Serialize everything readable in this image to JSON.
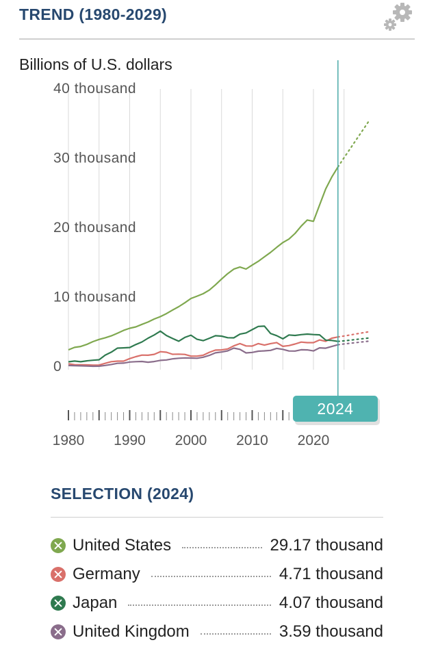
{
  "header": {
    "title": "TREND (1980-2029)"
  },
  "chart_unit": "Billions of U.S. dollars",
  "chart_data": {
    "type": "line",
    "title": "TREND (1980-2029)",
    "ylabel": "Billions of U.S. dollars",
    "xlabel": "",
    "xlim": [
      1980,
      2029
    ],
    "ylim": [
      0,
      40000
    ],
    "y_ticks": [
      {
        "value": 0,
        "label": "0"
      },
      {
        "value": 10000,
        "label": "10 thousand"
      },
      {
        "value": 20000,
        "label": "20 thousand"
      },
      {
        "value": 30000,
        "label": "30 thousand"
      },
      {
        "value": 40000,
        "label": "40 thousand"
      }
    ],
    "x_ticks": [
      {
        "value": 1980,
        "label": "1980"
      },
      {
        "value": 1990,
        "label": "1990"
      },
      {
        "value": 2000,
        "label": "2000"
      },
      {
        "value": 2010,
        "label": "2010"
      },
      {
        "value": 2020,
        "label": "2020"
      }
    ],
    "selected_year": 2024,
    "selected_label": "2024",
    "forecast_from": 2024,
    "series": [
      {
        "name": "United States",
        "color": "#7fa84f",
        "x": [
          1980,
          1981,
          1982,
          1983,
          1984,
          1985,
          1986,
          1987,
          1988,
          1989,
          1990,
          1991,
          1992,
          1993,
          1994,
          1995,
          1996,
          1997,
          1998,
          1999,
          2000,
          2001,
          2002,
          2003,
          2004,
          2005,
          2006,
          2007,
          2008,
          2009,
          2010,
          2011,
          2012,
          2013,
          2014,
          2015,
          2016,
          2017,
          2018,
          2019,
          2020,
          2021,
          2022,
          2023,
          2024,
          2025,
          2026,
          2027,
          2028,
          2029
        ],
        "values": [
          2860,
          3210,
          3340,
          3640,
          4040,
          4350,
          4590,
          4870,
          5250,
          5660,
          5960,
          6160,
          6520,
          6860,
          7290,
          7640,
          8070,
          8580,
          9060,
          9630,
          10250,
          10580,
          10940,
          11460,
          12210,
          13040,
          13820,
          14470,
          14770,
          14480,
          15050,
          15600,
          16250,
          16880,
          17610,
          18300,
          18800,
          19610,
          20660,
          21540,
          21350,
          23680,
          26010,
          27720,
          29170,
          30500,
          31800,
          33100,
          34400,
          35700
        ]
      },
      {
        "name": "Germany",
        "color": "#d9706a",
        "x": [
          1980,
          1981,
          1982,
          1983,
          1984,
          1985,
          1986,
          1987,
          1988,
          1989,
          1990,
          1991,
          1992,
          1993,
          1994,
          1995,
          1996,
          1997,
          1998,
          1999,
          2000,
          2001,
          2002,
          2003,
          2004,
          2005,
          2006,
          2007,
          2008,
          2009,
          2010,
          2011,
          2012,
          2013,
          2014,
          2015,
          2016,
          2017,
          2018,
          2019,
          2020,
          2021,
          2022,
          2023,
          2024,
          2025,
          2026,
          2027,
          2028,
          2029
        ],
        "values": [
          850,
          720,
          700,
          690,
          650,
          670,
          920,
          1150,
          1230,
          1230,
          1600,
          1870,
          2100,
          2080,
          2210,
          2590,
          2510,
          2220,
          2240,
          2200,
          1950,
          1950,
          2080,
          2500,
          2820,
          2850,
          2990,
          3430,
          3750,
          3420,
          3400,
          3750,
          3540,
          3750,
          3900,
          3360,
          3470,
          3690,
          3970,
          3890,
          3890,
          4280,
          4090,
          4530,
          4710,
          4850,
          5000,
          5150,
          5300,
          5450
        ]
      },
      {
        "name": "Japan",
        "color": "#2f7a4f",
        "x": [
          1980,
          1981,
          1982,
          1983,
          1984,
          1985,
          1986,
          1987,
          1988,
          1989,
          1990,
          1991,
          1992,
          1993,
          1994,
          1995,
          1996,
          1997,
          1998,
          1999,
          2000,
          2001,
          2002,
          2003,
          2004,
          2005,
          2006,
          2007,
          2008,
          2009,
          2010,
          2011,
          2012,
          2013,
          2014,
          2015,
          2016,
          2017,
          2018,
          2019,
          2020,
          2021,
          2022,
          2023,
          2024,
          2025,
          2026,
          2027,
          2028,
          2029
        ],
        "values": [
          1130,
          1240,
          1140,
          1270,
          1360,
          1430,
          2100,
          2520,
          3100,
          3140,
          3190,
          3620,
          3990,
          4530,
          5000,
          5550,
          4920,
          4490,
          4100,
          4640,
          4970,
          4370,
          4180,
          4520,
          4890,
          4830,
          4600,
          4580,
          5110,
          5290,
          5760,
          6230,
          6270,
          5210,
          4900,
          4440,
          5000,
          4930,
          5040,
          5120,
          5050,
          5010,
          4260,
          4210,
          4070,
          4150,
          4250,
          4350,
          4450,
          4550
        ]
      },
      {
        "name": "United Kingdom",
        "color": "#8a6d8b",
        "x": [
          1980,
          1981,
          1982,
          1983,
          1984,
          1985,
          1986,
          1987,
          1988,
          1989,
          1990,
          1991,
          1992,
          1993,
          1994,
          1995,
          1996,
          1997,
          1998,
          1999,
          2000,
          2001,
          2002,
          2003,
          2004,
          2005,
          2006,
          2007,
          2008,
          2009,
          2010,
          2011,
          2012,
          2013,
          2014,
          2015,
          2016,
          2017,
          2018,
          2019,
          2020,
          2021,
          2022,
          2023,
          2024,
          2025,
          2026,
          2027,
          2028,
          2029
        ],
        "values": [
          600,
          580,
          550,
          520,
          490,
          500,
          610,
          750,
          920,
          950,
          1100,
          1150,
          1180,
          1070,
          1170,
          1340,
          1400,
          1560,
          1650,
          1690,
          1670,
          1650,
          1790,
          2060,
          2420,
          2540,
          2710,
          3100,
          2930,
          2410,
          2480,
          2660,
          2710,
          2780,
          3060,
          2930,
          2690,
          2680,
          2870,
          2850,
          2700,
          3140,
          3090,
          3340,
          3590,
          3700,
          3800,
          3900,
          4000,
          4100
        ]
      }
    ]
  },
  "selection": {
    "title": "SELECTION (2024)",
    "items": [
      {
        "name": "United States",
        "value": "29.17 thousand",
        "color": "#7fa84f"
      },
      {
        "name": "Germany",
        "value": "4.71 thousand",
        "color": "#d9706a"
      },
      {
        "name": "Japan",
        "value": "4.07 thousand",
        "color": "#2f7a4f"
      },
      {
        "name": "United Kingdom",
        "value": "3.59 thousand",
        "color": "#8a6d8b"
      }
    ]
  }
}
